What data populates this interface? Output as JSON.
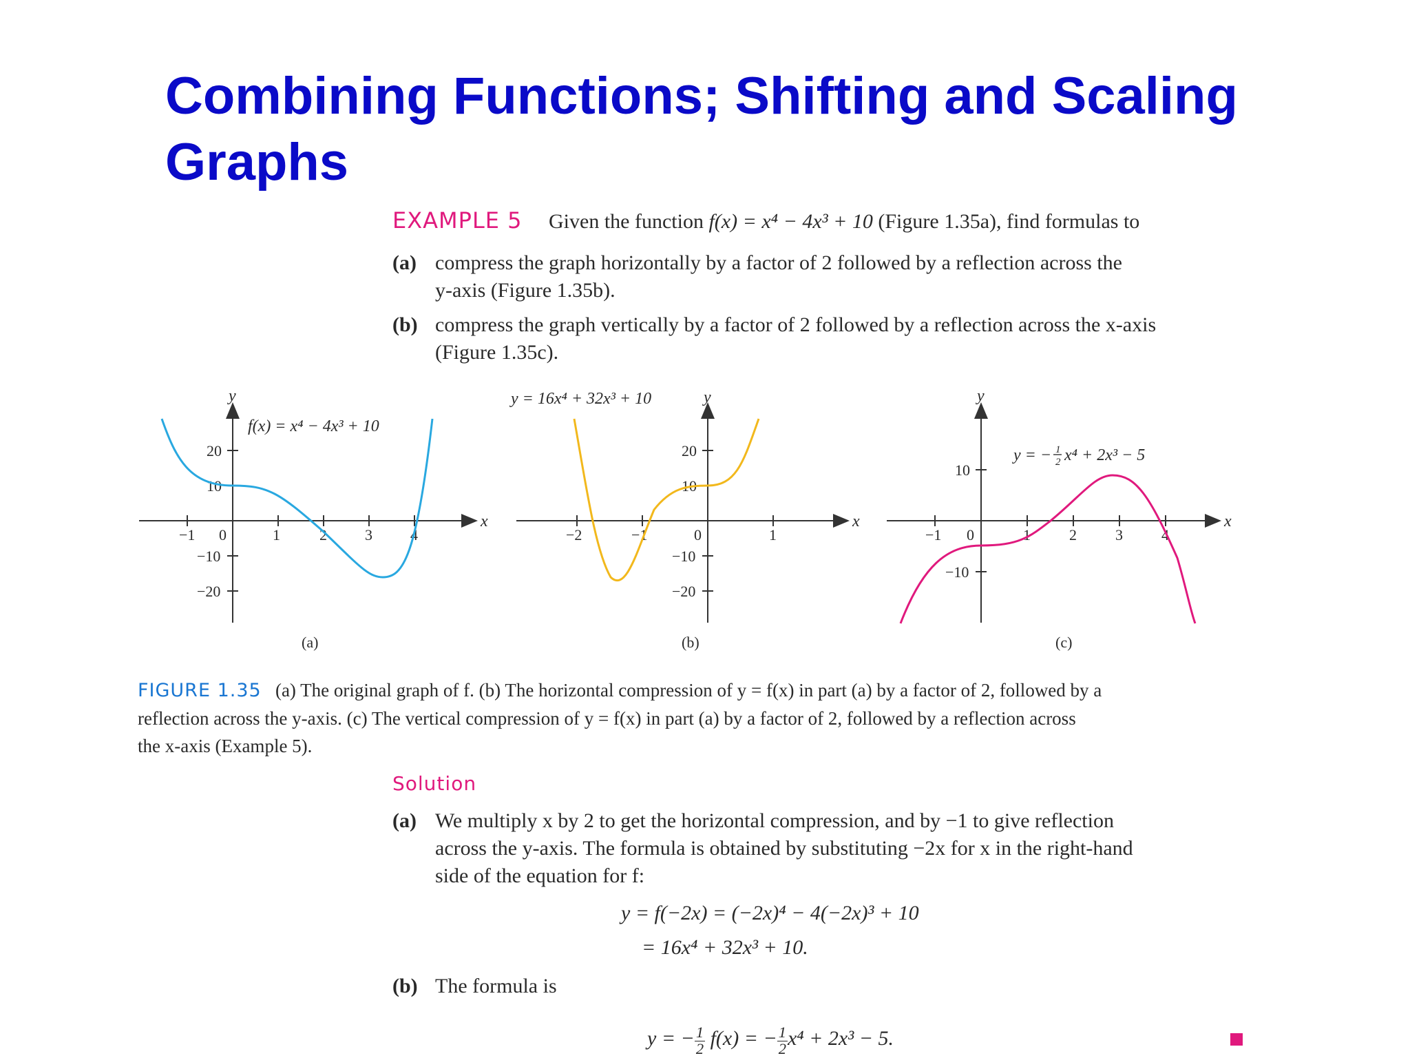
{
  "title": "Combining Functions; Shifting and Scaling Graphs",
  "example": {
    "label": "EXAMPLE 5",
    "intro_pre": "Given the function",
    "intro_fn": "f(x) = x⁴ − 4x³ + 10",
    "intro_post": "(Figure 1.35a), find formulas to",
    "parts": [
      {
        "label": "(a)",
        "line1": "compress the graph horizontally by a factor of 2 followed by a reflection across the",
        "line2": "y-axis (Figure 1.35b)."
      },
      {
        "label": "(b)",
        "line1": "compress the graph vertically by a factor of 2 followed by a reflection across the x-axis",
        "line2": "(Figure 1.35c)."
      }
    ]
  },
  "figure": {
    "panels": [
      {
        "sublabel": "(a)",
        "curve_label": "f(x) = x⁴ − 4x³ + 10",
        "x_axis_label": "x",
        "y_axis_label": "y",
        "x_ticks": [
          "−1",
          "0",
          "1",
          "2",
          "3",
          "4"
        ],
        "y_ticks": [
          "20",
          "10",
          "−10",
          "−20"
        ],
        "color": "#29a8e0"
      },
      {
        "sublabel": "(b)",
        "curve_label": "y = 16x⁴ + 32x³ + 10",
        "x_axis_label": "x",
        "y_axis_label": "y",
        "x_ticks": [
          "−2",
          "−1",
          "0",
          "1"
        ],
        "y_ticks": [
          "20",
          "10",
          "−10",
          "−20"
        ],
        "color": "#f2b81c"
      },
      {
        "sublabel": "(c)",
        "curve_label_pre": "y = −",
        "curve_label_num": "1",
        "curve_label_den": "2",
        "curve_label_post": "x⁴ + 2x³ − 5",
        "x_axis_label": "x",
        "y_axis_label": "y",
        "x_ticks": [
          "−1",
          "0",
          "1",
          "2",
          "3",
          "4"
        ],
        "y_ticks": [
          "10",
          "−10"
        ],
        "color": "#e0197d"
      }
    ],
    "caption_label": "FIGURE 1.35",
    "caption_line1": "(a) The original graph of f. (b) The horizontal compression of y = f(x) in part (a) by a factor of 2, followed by a",
    "caption_line2": "reflection across the y-axis. (c) The vertical compression of y = f(x) in part (a) by a factor of 2, followed by a reflection across",
    "caption_line3": "the x-axis (Example 5)."
  },
  "solution": {
    "label": "Solution",
    "a_label": "(a)",
    "a_line1": "We multiply x by 2 to get the horizontal compression, and by −1 to give reflection",
    "a_line2": "across the y-axis. The formula is obtained by substituting −2x for x in the right-hand",
    "a_line3": "side of the equation for f:",
    "eq1": "y = f(−2x) = (−2x)⁴ − 4(−2x)³ + 10",
    "eq2": "= 16x⁴ + 32x³ + 10.",
    "b_label": "(b)",
    "b_text": "The formula is",
    "eq3_pre": "y = −",
    "eq3_mid": "f(x) = −",
    "eq3_post": "x⁴ + 2x³ − 5.",
    "eq3_num": "1",
    "eq3_den": "2"
  }
}
